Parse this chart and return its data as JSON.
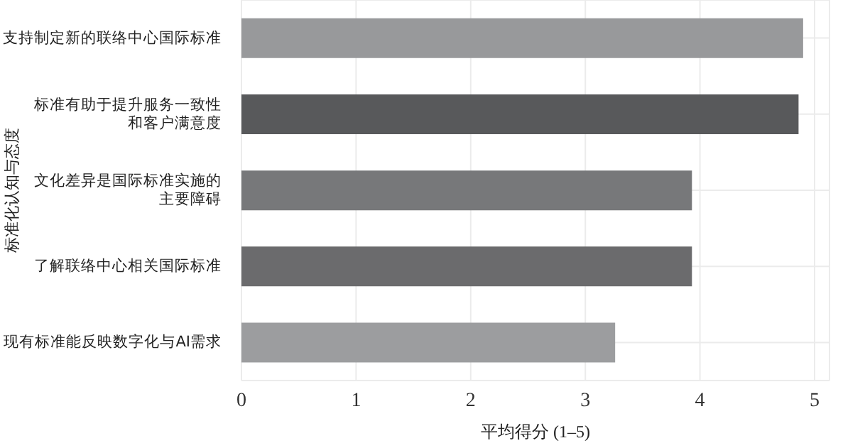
{
  "chart_data": {
    "type": "bar",
    "orientation": "horizontal",
    "xlabel": "平均得分 (1–5)",
    "ylabel": "标准化认知与态度",
    "categories": [
      "支持制定新的联络中心国际标准",
      "标准有助于提升服务一致性和客户满意度",
      "文化差异是国际标准实施的主要障碍",
      "了解联络中心相关国际标准",
      "现有标准能反映数字化与AI需求"
    ],
    "values": [
      4.9,
      4.86,
      3.93,
      3.93,
      3.26
    ],
    "colors": [
      "#98999b",
      "#58595b",
      "#77787a",
      "#6b6b6d",
      "#9c9d9f"
    ],
    "xlim": [
      0,
      5.13
    ],
    "xticks": [
      0,
      1,
      2,
      3,
      4,
      5
    ],
    "grid": true
  }
}
